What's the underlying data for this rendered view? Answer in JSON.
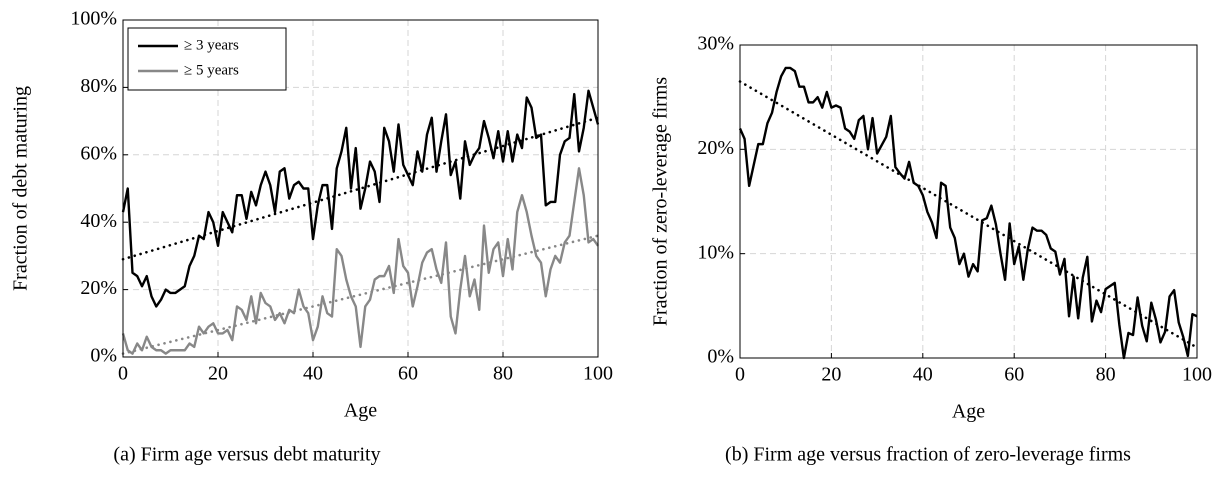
{
  "chart_data": [
    {
      "type": "line",
      "x_label": "Age",
      "y_label": "Fraction of debt maturing",
      "caption": "(a) Firm age versus debt maturity",
      "xlim": [
        0,
        100
      ],
      "xticks": [
        0,
        20,
        40,
        60,
        80,
        100
      ],
      "ylim": [
        0,
        100
      ],
      "yticks": [
        {
          "value": 0,
          "label": "0%"
        },
        {
          "value": 20,
          "label": "20%"
        },
        {
          "value": 40,
          "label": "40%"
        },
        {
          "value": 60,
          "label": "60%"
        },
        {
          "value": 80,
          "label": "80%"
        },
        {
          "value": 100,
          "label": "100%"
        }
      ],
      "grid": true,
      "legend": "upper left",
      "x": [
        0,
        1,
        2,
        3,
        4,
        5,
        6,
        7,
        8,
        9,
        10,
        11,
        12,
        13,
        14,
        15,
        16,
        17,
        18,
        19,
        20,
        21,
        22,
        23,
        24,
        25,
        26,
        27,
        28,
        29,
        30,
        31,
        32,
        33,
        34,
        35,
        36,
        37,
        38,
        39,
        40,
        41,
        42,
        43,
        44,
        45,
        46,
        47,
        48,
        49,
        50,
        51,
        52,
        53,
        54,
        55,
        56,
        57,
        58,
        59,
        60,
        61,
        62,
        63,
        64,
        65,
        66,
        67,
        68,
        69,
        70,
        71,
        72,
        73,
        74,
        75,
        76,
        77,
        78,
        79,
        80,
        81,
        82,
        83,
        84,
        85,
        86,
        87,
        88,
        89,
        90,
        91,
        92,
        93,
        94,
        95,
        96,
        97,
        98,
        99,
        100
      ],
      "series": [
        {
          "name": "≥ 3 years",
          "color": "#000000",
          "dash": "solid",
          "values": [
            43,
            50,
            25,
            24,
            21,
            24,
            18,
            15,
            17,
            20,
            19,
            19,
            20,
            21,
            27,
            30,
            36,
            35,
            43,
            40,
            33,
            43,
            40,
            37,
            48,
            48,
            41,
            49,
            45,
            51,
            55,
            51,
            43,
            55,
            56,
            47,
            51,
            52,
            50,
            50,
            35,
            45,
            51,
            51,
            38,
            56,
            61,
            68,
            50,
            62,
            44,
            50,
            58,
            55,
            46,
            68,
            64,
            55,
            69,
            57,
            54,
            51,
            61,
            55,
            66,
            71,
            55,
            64,
            72,
            54,
            58,
            47,
            64,
            57,
            60,
            62,
            70,
            65,
            59,
            67,
            58,
            67,
            58,
            66,
            62,
            77,
            74,
            65,
            66,
            45,
            46,
            46,
            60,
            64,
            65,
            78,
            61,
            68,
            79,
            74,
            69
          ]
        },
        {
          "name": "≥ 5 years",
          "color": "#888888",
          "dash": "solid",
          "values": [
            7,
            2,
            1,
            4,
            2,
            6,
            3,
            2,
            2,
            1,
            2,
            2,
            2,
            2,
            4,
            3,
            9,
            7,
            9,
            10,
            7,
            7,
            8,
            5,
            15,
            14,
            11,
            18,
            10,
            19,
            16,
            15,
            11,
            13,
            10,
            14,
            13,
            20,
            15,
            13,
            5,
            9,
            18,
            13,
            12,
            32,
            30,
            23,
            18,
            15,
            3,
            15,
            17,
            23,
            24,
            24,
            27,
            19,
            35,
            27,
            25,
            15,
            21,
            28,
            31,
            32,
            26,
            22,
            34,
            12,
            7,
            20,
            30,
            18,
            23,
            14,
            39,
            25,
            32,
            34,
            24,
            35,
            26,
            43,
            48,
            43,
            36,
            30,
            28,
            18,
            26,
            30,
            28,
            34,
            36,
            46,
            56,
            48,
            34,
            35,
            33
          ]
        },
        {
          "color": "#000000",
          "dash": "dotted",
          "x": [
            0,
            100
          ],
          "values": [
            29,
            71
          ]
        },
        {
          "color": "#888888",
          "dash": "dotted",
          "x": [
            0,
            100
          ],
          "values": [
            1,
            36
          ]
        }
      ]
    },
    {
      "type": "line",
      "x_label": "Age",
      "y_label": "Fraction of zero-leverage firms",
      "caption": "(b) Firm age versus fraction of zero-leverage firms",
      "xlim": [
        0,
        100
      ],
      "xticks": [
        0,
        20,
        40,
        60,
        80,
        100
      ],
      "ylim": [
        0,
        30
      ],
      "yticks": [
        {
          "value": 0,
          "label": "0%"
        },
        {
          "value": 10,
          "label": "10%"
        },
        {
          "value": 20,
          "label": "20%"
        },
        {
          "value": 30,
          "label": "30%"
        }
      ],
      "grid": true,
      "x": [
        0,
        1,
        2,
        3,
        4,
        5,
        6,
        7,
        8,
        9,
        10,
        11,
        12,
        13,
        14,
        15,
        16,
        17,
        18,
        19,
        20,
        21,
        22,
        23,
        24,
        25,
        26,
        27,
        28,
        29,
        30,
        31,
        32,
        33,
        34,
        35,
        36,
        37,
        38,
        39,
        40,
        41,
        42,
        43,
        44,
        45,
        46,
        47,
        48,
        49,
        50,
        51,
        52,
        53,
        54,
        55,
        56,
        57,
        58,
        59,
        60,
        61,
        62,
        63,
        64,
        65,
        66,
        67,
        68,
        69,
        70,
        71,
        72,
        73,
        74,
        75,
        76,
        77,
        78,
        79,
        80,
        81,
        82,
        83,
        84,
        85,
        86,
        87,
        88,
        89,
        90,
        91,
        92,
        93,
        94,
        95,
        96,
        97,
        98,
        99,
        100
      ],
      "series": [
        {
          "color": "#000000",
          "dash": "solid",
          "values": [
            22,
            21,
            16.5,
            18.5,
            20.5,
            20.5,
            22.5,
            23.5,
            25.5,
            27,
            27.8,
            27.8,
            27.5,
            26,
            26,
            24.5,
            24.5,
            25,
            24,
            25.5,
            24,
            24.2,
            24,
            22,
            21.7,
            21,
            22.8,
            23.2,
            20,
            23,
            19.6,
            20.4,
            21.2,
            23.2,
            18.3,
            17.7,
            17.2,
            18.8,
            16.8,
            16.5,
            15.6,
            14,
            13,
            11.5,
            16.8,
            16.5,
            12.5,
            11.5,
            9,
            10,
            7.8,
            9,
            8.3,
            13.2,
            13.4,
            14.6,
            12.8,
            10,
            7.5,
            12.9,
            9,
            10.7,
            7.5,
            10.5,
            12.5,
            12.2,
            12.2,
            11.8,
            10.5,
            10.2,
            8,
            9.5,
            4,
            7.8,
            3.8,
            7.7,
            9.7,
            3.5,
            5.5,
            4.4,
            6.6,
            6.9,
            7.2,
            3.2,
            0,
            2.4,
            2.2,
            5.8,
            3.1,
            1.6,
            5.3,
            3.7,
            1.5,
            2.5,
            5.9,
            6.5,
            3.4,
            2,
            0.2,
            4.2,
            4
          ]
        },
        {
          "color": "#000000",
          "dash": "dotted",
          "x": [
            0,
            100
          ],
          "values": [
            26.5,
            1
          ]
        }
      ]
    }
  ]
}
